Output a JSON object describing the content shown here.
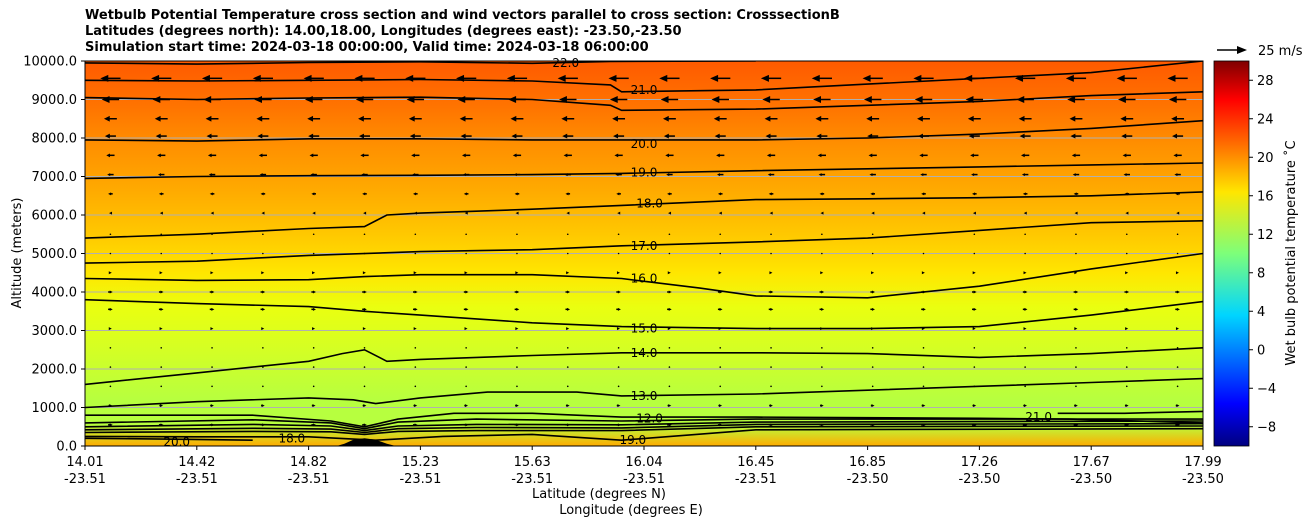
{
  "chart_data": {
    "type": "contour cross-section",
    "title_lines": [
      "Wetbulb Potential Temperature cross section and wind vectors parallel to cross section: CrosssectionB",
      "Latitudes (degrees north): 14.00,18.00, Longitudes (degrees east): -23.50,-23.50",
      "Simulation start time: 2024-03-18 00:00:00, Valid time: 2024-03-18 06:00:00"
    ],
    "ylabel": "Altitude (meters)",
    "xlabel_lat": "Latitude (degrees N)",
    "xlabel_lon": "Longitude (degrees E)",
    "ylim": [
      0,
      10000
    ],
    "y_ticks": [
      "0.0",
      "1000.0",
      "2000.0",
      "3000.0",
      "4000.0",
      "5000.0",
      "6000.0",
      "7000.0",
      "8000.0",
      "9000.0",
      "10000.0"
    ],
    "x_ticks_lat": [
      "14.01",
      "14.42",
      "14.82",
      "15.23",
      "15.63",
      "16.04",
      "16.45",
      "16.85",
      "17.26",
      "17.67",
      "17.99"
    ],
    "x_ticks_lon": [
      "-23.51",
      "-23.51",
      "-23.51",
      "-23.51",
      "-23.51",
      "-23.51",
      "-23.51",
      "-23.50",
      "-23.50",
      "-23.50",
      "-23.50"
    ],
    "colorbar": {
      "label": "Wet bulb potential temperature ˚C",
      "range": [
        -10,
        30
      ],
      "ticks": [
        "−8",
        "−4",
        "0",
        "4",
        "8",
        "12",
        "16",
        "20",
        "24",
        "28"
      ]
    },
    "quiver_key": "25 m/s",
    "contour_labels": [
      {
        "text": "22.0",
        "x_frac": 0.43,
        "alt": 9950
      },
      {
        "text": "21.0",
        "x_frac": 0.5,
        "alt": 9250
      },
      {
        "text": "20.0",
        "x_frac": 0.5,
        "alt": 7850
      },
      {
        "text": "19.0",
        "x_frac": 0.5,
        "alt": 7100
      },
      {
        "text": "18.0",
        "x_frac": 0.505,
        "alt": 6300
      },
      {
        "text": "17.0",
        "x_frac": 0.5,
        "alt": 5200
      },
      {
        "text": "16.0",
        "x_frac": 0.5,
        "alt": 4350
      },
      {
        "text": "15.0",
        "x_frac": 0.5,
        "alt": 3050
      },
      {
        "text": "14.0",
        "x_frac": 0.5,
        "alt": 2420
      },
      {
        "text": "13.0",
        "x_frac": 0.5,
        "alt": 1300
      },
      {
        "text": "12.0",
        "x_frac": 0.505,
        "alt": 720
      },
      {
        "text": "19.0",
        "x_frac": 0.49,
        "alt": 150
      },
      {
        "text": "18.0",
        "x_frac": 0.185,
        "alt": 200
      },
      {
        "text": "20.0",
        "x_frac": 0.082,
        "alt": 100
      },
      {
        "text": "21.0",
        "x_frac": 0.853,
        "alt": 750
      }
    ],
    "contours": [
      {
        "level": 22,
        "pts": [
          [
            0,
            9950
          ],
          [
            0.1,
            9920
          ],
          [
            0.2,
            9960
          ],
          [
            0.3,
            9980
          ],
          [
            0.4,
            9940
          ],
          [
            0.47,
            9990
          ],
          [
            0.6,
            10000
          ]
        ]
      },
      {
        "level": 21,
        "pts": [
          [
            0,
            9500
          ],
          [
            0.1,
            9480
          ],
          [
            0.2,
            9500
          ],
          [
            0.3,
            9520
          ],
          [
            0.4,
            9480
          ],
          [
            0.47,
            9380
          ],
          [
            0.48,
            9200
          ],
          [
            0.6,
            9250
          ],
          [
            0.7,
            9400
          ],
          [
            0.8,
            9550
          ],
          [
            0.9,
            9700
          ],
          [
            1,
            10000
          ]
        ]
      },
      {
        "level": 20,
        "pts": [
          [
            0,
            9050
          ],
          [
            0.1,
            9000
          ],
          [
            0.2,
            9040
          ],
          [
            0.3,
            9060
          ],
          [
            0.4,
            9000
          ],
          [
            0.47,
            8850
          ],
          [
            0.48,
            8720
          ],
          [
            0.6,
            8750
          ],
          [
            0.7,
            8850
          ],
          [
            0.8,
            8950
          ],
          [
            0.9,
            9100
          ],
          [
            1,
            9200
          ]
        ]
      },
      {
        "level": 20,
        "pts": [
          [
            0,
            7950
          ],
          [
            0.1,
            7920
          ],
          [
            0.2,
            7980
          ],
          [
            0.3,
            7980
          ],
          [
            0.4,
            7950
          ],
          [
            0.48,
            7950
          ],
          [
            0.6,
            7950
          ],
          [
            0.7,
            8000
          ],
          [
            0.8,
            8100
          ],
          [
            0.9,
            8250
          ],
          [
            1,
            8450
          ]
        ]
      },
      {
        "level": 19,
        "pts": [
          [
            0,
            6950
          ],
          [
            0.1,
            7000
          ],
          [
            0.2,
            7020
          ],
          [
            0.3,
            7030
          ],
          [
            0.4,
            7050
          ],
          [
            0.48,
            7080
          ],
          [
            0.6,
            7150
          ],
          [
            0.7,
            7200
          ],
          [
            0.8,
            7250
          ],
          [
            0.9,
            7300
          ],
          [
            1,
            7350
          ]
        ]
      },
      {
        "level": 18,
        "pts": [
          [
            0,
            5400
          ],
          [
            0.1,
            5500
          ],
          [
            0.2,
            5650
          ],
          [
            0.25,
            5700
          ],
          [
            0.27,
            6000
          ],
          [
            0.3,
            6050
          ],
          [
            0.35,
            6100
          ],
          [
            0.4,
            6150
          ],
          [
            0.48,
            6250
          ],
          [
            0.6,
            6400
          ],
          [
            0.7,
            6420
          ],
          [
            0.8,
            6450
          ],
          [
            0.9,
            6500
          ],
          [
            1,
            6600
          ]
        ]
      },
      {
        "level": 17,
        "pts": [
          [
            0,
            4750
          ],
          [
            0.1,
            4800
          ],
          [
            0.2,
            4950
          ],
          [
            0.3,
            5050
          ],
          [
            0.4,
            5100
          ],
          [
            0.48,
            5200
          ],
          [
            0.6,
            5300
          ],
          [
            0.7,
            5400
          ],
          [
            0.8,
            5600
          ],
          [
            0.9,
            5800
          ],
          [
            1,
            5850
          ]
        ]
      },
      {
        "level": 16,
        "pts": [
          [
            0,
            4350
          ],
          [
            0.1,
            4300
          ],
          [
            0.2,
            4320
          ],
          [
            0.25,
            4400
          ],
          [
            0.3,
            4450
          ],
          [
            0.4,
            4450
          ],
          [
            0.48,
            4350
          ],
          [
            0.55,
            4100
          ],
          [
            0.6,
            3900
          ],
          [
            0.7,
            3850
          ],
          [
            0.8,
            4150
          ],
          [
            0.9,
            4600
          ],
          [
            1,
            5000
          ]
        ]
      },
      {
        "level": 15,
        "pts": [
          [
            0,
            3800
          ],
          [
            0.1,
            3700
          ],
          [
            0.2,
            3620
          ],
          [
            0.25,
            3500
          ],
          [
            0.3,
            3400
          ],
          [
            0.4,
            3200
          ],
          [
            0.48,
            3100
          ],
          [
            0.6,
            3050
          ],
          [
            0.7,
            3050
          ],
          [
            0.8,
            3100
          ],
          [
            0.9,
            3400
          ],
          [
            1,
            3750
          ]
        ]
      },
      {
        "level": 14,
        "pts": [
          [
            0,
            1600
          ],
          [
            0.1,
            1900
          ],
          [
            0.2,
            2200
          ],
          [
            0.23,
            2400
          ],
          [
            0.25,
            2500
          ],
          [
            0.27,
            2200
          ],
          [
            0.3,
            2250
          ],
          [
            0.4,
            2350
          ],
          [
            0.48,
            2420
          ],
          [
            0.6,
            2420
          ],
          [
            0.7,
            2400
          ],
          [
            0.8,
            2300
          ],
          [
            0.9,
            2400
          ],
          [
            1,
            2550
          ]
        ]
      },
      {
        "level": 13,
        "pts": [
          [
            0,
            1000
          ],
          [
            0.1,
            1150
          ],
          [
            0.2,
            1250
          ],
          [
            0.24,
            1200
          ],
          [
            0.26,
            1100
          ],
          [
            0.3,
            1250
          ],
          [
            0.36,
            1400
          ],
          [
            0.44,
            1400
          ],
          [
            0.48,
            1300
          ],
          [
            0.6,
            1350
          ],
          [
            0.7,
            1450
          ],
          [
            0.8,
            1550
          ],
          [
            0.9,
            1650
          ],
          [
            1,
            1750
          ]
        ]
      },
      {
        "level": 12,
        "pts": [
          [
            0,
            800
          ],
          [
            0.15,
            800
          ],
          [
            0.22,
            650
          ],
          [
            0.25,
            500
          ],
          [
            0.28,
            700
          ],
          [
            0.33,
            850
          ],
          [
            0.4,
            850
          ],
          [
            0.48,
            750
          ],
          [
            0.6,
            750
          ],
          [
            0.8,
            720
          ],
          [
            0.88,
            700
          ],
          [
            1,
            600
          ]
        ]
      },
      {
        "level": 11,
        "pts": [
          [
            0,
            600
          ],
          [
            0.15,
            680
          ],
          [
            0.22,
            600
          ],
          [
            0.25,
            450
          ],
          [
            0.28,
            620
          ],
          [
            0.35,
            700
          ],
          [
            0.48,
            650
          ],
          [
            0.6,
            700
          ],
          [
            1,
            700
          ]
        ]
      },
      {
        "level": 10,
        "pts": [
          [
            0,
            500
          ],
          [
            0.15,
            560
          ],
          [
            0.22,
            520
          ],
          [
            0.25,
            400
          ],
          [
            0.28,
            520
          ],
          [
            0.35,
            560
          ],
          [
            0.48,
            550
          ],
          [
            0.6,
            620
          ],
          [
            1,
            650
          ]
        ]
      },
      {
        "level": 9,
        "pts": [
          [
            0,
            420
          ],
          [
            0.15,
            460
          ],
          [
            0.22,
            440
          ],
          [
            0.25,
            350
          ],
          [
            0.28,
            450
          ],
          [
            0.35,
            480
          ],
          [
            0.48,
            470
          ],
          [
            0.6,
            560
          ],
          [
            1,
            580
          ]
        ]
      },
      {
        "level": 8,
        "pts": [
          [
            0,
            350
          ],
          [
            0.15,
            380
          ],
          [
            0.22,
            370
          ],
          [
            0.25,
            300
          ],
          [
            0.28,
            380
          ],
          [
            0.35,
            400
          ],
          [
            0.48,
            400
          ],
          [
            0.6,
            500
          ],
          [
            1,
            520
          ]
        ]
      },
      {
        "level": 19,
        "pts": [
          [
            0,
            250
          ],
          [
            0.1,
            240
          ],
          [
            0.2,
            240
          ],
          [
            0.26,
            150
          ],
          [
            0.32,
            250
          ],
          [
            0.4,
            300
          ],
          [
            0.48,
            150
          ],
          [
            0.6,
            420
          ],
          [
            1,
            450
          ]
        ]
      },
      {
        "level": 20,
        "pts": [
          [
            0,
            200
          ],
          [
            0.07,
            180
          ],
          [
            0.15,
            150
          ]
        ]
      },
      {
        "level": 21,
        "pts": [
          [
            0.87,
            850
          ],
          [
            0.93,
            850
          ],
          [
            1,
            900
          ]
        ]
      }
    ],
    "terrain": [
      [
        0.225,
        0
      ],
      [
        0.232,
        60
      ],
      [
        0.24,
        160
      ],
      [
        0.25,
        200
      ],
      [
        0.26,
        160
      ],
      [
        0.27,
        60
      ],
      [
        0.278,
        0
      ]
    ],
    "wind_vectors": [
      {
        "alt": 9550,
        "u": -22
      },
      {
        "alt": 9000,
        "u": -19
      },
      {
        "alt": 8500,
        "u": -14
      },
      {
        "alt": 8050,
        "u": -12
      },
      {
        "alt": 7550,
        "u": -9
      },
      {
        "alt": 7050,
        "u": -7
      },
      {
        "alt": 6550,
        "u": -5
      },
      {
        "alt": 6050,
        "u": -3
      },
      {
        "alt": 5500,
        "u": -2
      },
      {
        "alt": 5000,
        "u": -1
      },
      {
        "alt": 4500,
        "u": 3
      },
      {
        "alt": 4000,
        "u": 5
      },
      {
        "alt": 3550,
        "u": 5
      },
      {
        "alt": 3050,
        "u": 3
      },
      {
        "alt": 2550,
        "u": 2
      },
      {
        "alt": 2050,
        "u": 1
      },
      {
        "alt": 1550,
        "u": 2
      },
      {
        "alt": 1050,
        "u": 4
      },
      {
        "alt": 550,
        "u": 5
      }
    ]
  }
}
